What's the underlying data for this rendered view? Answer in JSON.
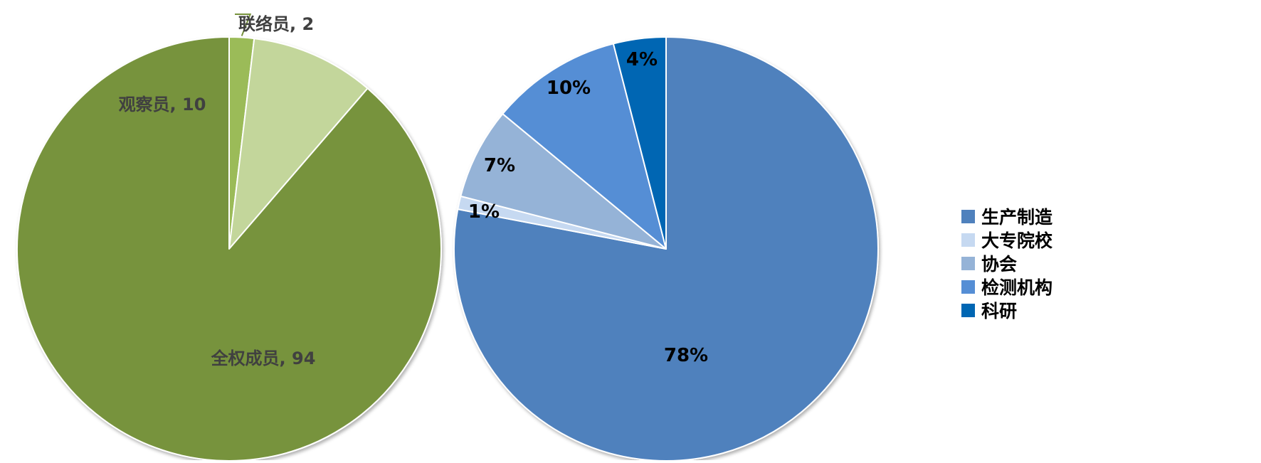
{
  "chart_data": [
    {
      "type": "pie",
      "title": "",
      "slices": [
        {
          "label": "全权成员",
          "value": 94,
          "data_label": "全权成员, 94",
          "color": "#77933C"
        },
        {
          "label": "联络员",
          "value": 2,
          "data_label": "联络员, 2",
          "color": "#9BBB59"
        },
        {
          "label": "观察员",
          "value": 10,
          "data_label": "观察员, 10",
          "color": "#C3D69B"
        }
      ]
    },
    {
      "type": "pie",
      "title": "",
      "legend_position": "right",
      "slices": [
        {
          "label": "生产制造",
          "value": 78,
          "data_label": "78%",
          "color": "#4F81BD"
        },
        {
          "label": "大专院校",
          "value": 1,
          "data_label": "1%",
          "color": "#C6D9F1"
        },
        {
          "label": "协会",
          "value": 7,
          "data_label": "7%",
          "color": "#95B3D7"
        },
        {
          "label": "检测机构",
          "value": 10,
          "data_label": "10%",
          "color": "#558ED5"
        },
        {
          "label": "科研",
          "value": 4,
          "data_label": "4%",
          "color": "#0066B3"
        }
      ]
    }
  ]
}
